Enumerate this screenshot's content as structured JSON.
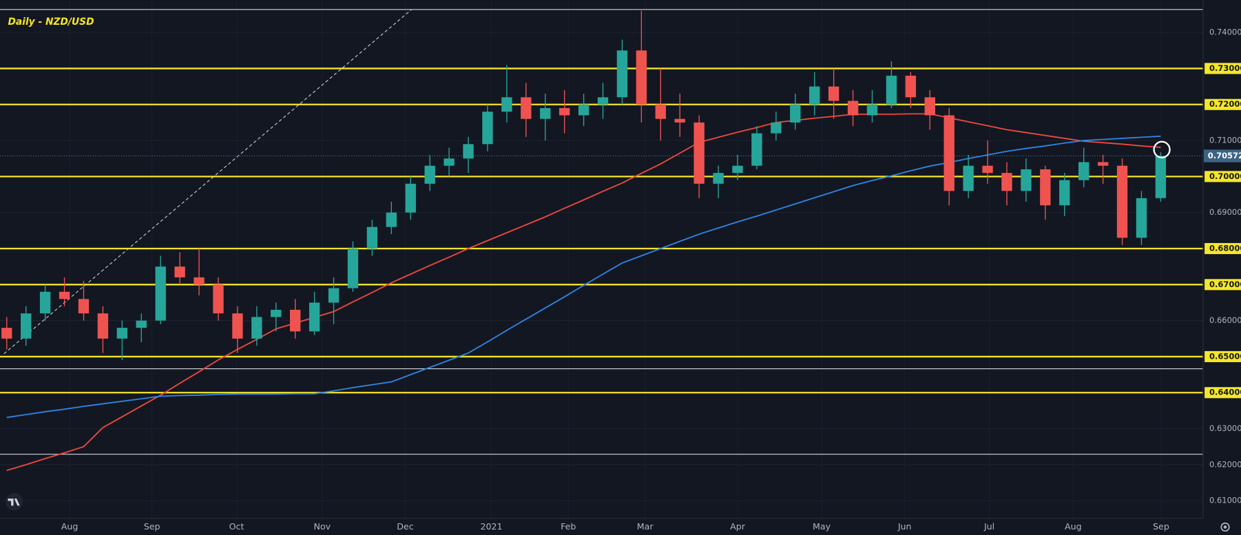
{
  "chart_data": {
    "type": "candlestick",
    "title": "Daily - NZD/USD",
    "x": [
      0,
      1,
      2,
      3,
      4,
      5,
      6,
      7,
      8,
      9,
      10,
      11,
      12,
      13,
      14,
      15,
      16,
      17,
      18,
      19,
      20,
      21,
      22,
      23,
      24,
      25,
      26,
      27,
      28,
      29,
      30,
      31,
      32,
      33,
      34,
      35,
      36,
      37,
      38,
      39,
      40,
      41,
      42,
      43,
      44,
      45,
      46,
      47,
      48,
      49,
      50,
      51,
      52,
      53,
      54,
      55,
      56,
      57,
      58,
      59,
      60
    ],
    "open": [
      0.658,
      0.655,
      0.662,
      0.668,
      0.666,
      0.662,
      0.655,
      0.658,
      0.66,
      0.675,
      0.672,
      0.67,
      0.662,
      0.655,
      0.661,
      0.663,
      0.657,
      0.665,
      0.669,
      0.68,
      0.686,
      0.69,
      0.698,
      0.703,
      0.705,
      0.709,
      0.718,
      0.722,
      0.716,
      0.719,
      0.717,
      0.72,
      0.722,
      0.735,
      0.72,
      0.716,
      0.715,
      0.698,
      0.701,
      0.703,
      0.712,
      0.715,
      0.72,
      0.725,
      0.721,
      0.717,
      0.72,
      0.728,
      0.722,
      0.717,
      0.696,
      0.703,
      0.701,
      0.696,
      0.702,
      0.692,
      0.699,
      0.704,
      0.703,
      0.683,
      0.694
    ],
    "high": [
      0.661,
      0.664,
      0.67,
      0.672,
      0.671,
      0.664,
      0.66,
      0.662,
      0.678,
      0.679,
      0.68,
      0.672,
      0.664,
      0.664,
      0.665,
      0.666,
      0.668,
      0.672,
      0.682,
      0.688,
      0.693,
      0.7,
      0.706,
      0.708,
      0.711,
      0.72,
      0.731,
      0.726,
      0.723,
      0.724,
      0.723,
      0.726,
      0.738,
      0.746,
      0.73,
      0.723,
      0.717,
      0.703,
      0.706,
      0.714,
      0.718,
      0.723,
      0.729,
      0.73,
      0.724,
      0.724,
      0.732,
      0.729,
      0.724,
      0.719,
      0.706,
      0.71,
      0.704,
      0.705,
      0.703,
      0.701,
      0.708,
      0.706,
      0.705,
      0.696,
      0.7067
    ],
    "low": [
      0.652,
      0.653,
      0.66,
      0.664,
      0.66,
      0.651,
      0.649,
      0.654,
      0.659,
      0.67,
      0.667,
      0.66,
      0.651,
      0.653,
      0.657,
      0.655,
      0.656,
      0.659,
      0.668,
      0.678,
      0.684,
      0.688,
      0.696,
      0.7,
      0.701,
      0.707,
      0.715,
      0.711,
      0.71,
      0.712,
      0.714,
      0.716,
      0.72,
      0.715,
      0.71,
      0.711,
      0.694,
      0.694,
      0.699,
      0.702,
      0.71,
      0.713,
      0.717,
      0.716,
      0.714,
      0.715,
      0.719,
      0.719,
      0.713,
      0.692,
      0.694,
      0.698,
      0.692,
      0.693,
      0.688,
      0.689,
      0.697,
      0.698,
      0.681,
      0.681,
      0.693
    ],
    "close": [
      0.655,
      0.662,
      0.668,
      0.666,
      0.662,
      0.655,
      0.658,
      0.66,
      0.675,
      0.672,
      0.67,
      0.662,
      0.655,
      0.661,
      0.663,
      0.657,
      0.665,
      0.669,
      0.68,
      0.686,
      0.69,
      0.698,
      0.703,
      0.705,
      0.709,
      0.718,
      0.722,
      0.716,
      0.719,
      0.717,
      0.72,
      0.722,
      0.735,
      0.72,
      0.716,
      0.715,
      0.698,
      0.701,
      0.703,
      0.712,
      0.715,
      0.72,
      0.725,
      0.721,
      0.717,
      0.72,
      0.728,
      0.722,
      0.717,
      0.696,
      0.703,
      0.701,
      0.696,
      0.702,
      0.692,
      0.699,
      0.704,
      0.703,
      0.683,
      0.694,
      0.7057
    ],
    "up_color": "#26a69a",
    "down_color": "#ef5350",
    "series": [
      {
        "color": "#f04a3c",
        "values": [
          0.6184,
          0.62,
          0.6217,
          0.6233,
          0.625,
          0.6303,
          0.6333,
          0.6363,
          0.6393,
          0.6426,
          0.6458,
          0.6491,
          0.652,
          0.6548,
          0.6577,
          0.6593,
          0.6609,
          0.6625,
          0.6652,
          0.6678,
          0.6705,
          0.6729,
          0.6753,
          0.6776,
          0.68,
          0.6822,
          0.6844,
          0.6866,
          0.6888,
          0.6912,
          0.6935,
          0.6959,
          0.6982,
          0.7009,
          0.7035,
          0.7065,
          0.7095,
          0.7109,
          0.7123,
          0.7136,
          0.715,
          0.7156,
          0.7162,
          0.7167,
          0.7173,
          0.7173,
          0.7173,
          0.7174,
          0.7174,
          0.7163,
          0.7152,
          0.7141,
          0.713,
          0.7122,
          0.7114,
          0.7106,
          0.7098,
          0.7094,
          0.709,
          0.7085,
          0.7081
        ]
      },
      {
        "color": "#2f86e6",
        "values": [
          0.6331,
          0.6339,
          0.6347,
          0.6354,
          0.6362,
          0.6369,
          0.6376,
          0.6383,
          0.639,
          0.6392,
          0.6393,
          0.6395,
          0.6396,
          0.6396,
          0.6396,
          0.6397,
          0.6397,
          0.6405,
          0.6414,
          0.6422,
          0.643,
          0.645,
          0.647,
          0.649,
          0.651,
          0.6541,
          0.6573,
          0.6604,
          0.6635,
          0.6666,
          0.6698,
          0.6729,
          0.676,
          0.678,
          0.68,
          0.682,
          0.684,
          0.6857,
          0.6874,
          0.689,
          0.6907,
          0.6924,
          0.6941,
          0.6958,
          0.6975,
          0.6989,
          0.7002,
          0.7016,
          0.7029,
          0.7039,
          0.705,
          0.706,
          0.707,
          0.7078,
          0.7085,
          0.7093,
          0.71,
          0.7103,
          0.7106,
          0.7109,
          0.7112
        ]
      }
    ],
    "levels": [
      0.73,
      0.72,
      0.7,
      0.68,
      0.67,
      0.65,
      0.64
    ],
    "level_color": "#f5e628",
    "last_price": 0.70572,
    "xlim": [
      -0.35,
      62.2
    ],
    "ylim": [
      0.6051,
      0.749
    ],
    "xticks": [
      {
        "value": 3.27,
        "label": "Aug"
      },
      {
        "value": 7.55,
        "label": "Sep"
      },
      {
        "value": 11.95,
        "label": "Oct"
      },
      {
        "value": 16.4,
        "label": "Nov"
      },
      {
        "value": 20.72,
        "label": "Dec"
      },
      {
        "value": 25.2,
        "label": "2021"
      },
      {
        "value": 29.2,
        "label": "Feb"
      },
      {
        "value": 33.19,
        "label": "Mar"
      },
      {
        "value": 38.0,
        "label": "Apr"
      },
      {
        "value": 42.37,
        "label": "May"
      },
      {
        "value": 46.69,
        "label": "Jun"
      },
      {
        "value": 51.09,
        "label": "Jul"
      },
      {
        "value": 55.45,
        "label": "Aug"
      },
      {
        "value": 60.02,
        "label": "Sep"
      }
    ],
    "yticks": [
      {
        "value": 0.61,
        "label": "0.61000"
      },
      {
        "value": 0.62,
        "label": "0.62000"
      },
      {
        "value": 0.63,
        "label": "0.63000"
      },
      {
        "value": 0.64,
        "label": "0.64000"
      },
      {
        "value": 0.65,
        "label": "0.65000"
      },
      {
        "value": 0.66,
        "label": "0.66000"
      },
      {
        "value": 0.67,
        "label": "0.67000"
      },
      {
        "value": 0.68,
        "label": "0.68000"
      },
      {
        "value": 0.69,
        "label": "0.69000"
      },
      {
        "value": 0.7,
        "label": "0.70000"
      },
      {
        "value": 0.71,
        "label": "0.71000"
      },
      {
        "value": 0.72,
        "label": "0.72000"
      },
      {
        "value": 0.73,
        "label": "0.73000"
      },
      {
        "value": 0.74,
        "label": "0.74000"
      }
    ],
    "grid": true
  }
}
